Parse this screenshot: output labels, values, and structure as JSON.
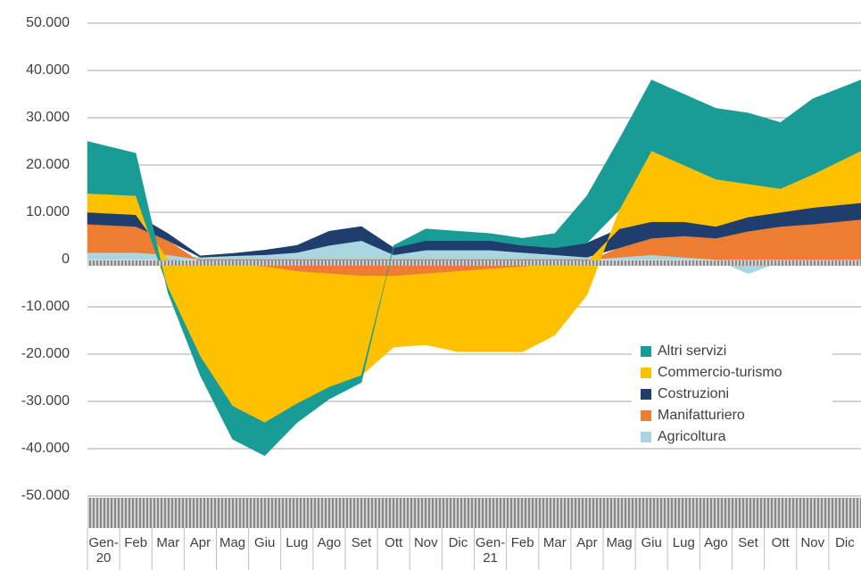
{
  "chart_data": {
    "type": "stacked-area",
    "categories": [
      "Gen-20",
      "Feb",
      "Mar",
      "Apr",
      "Mag",
      "Giu",
      "Lug",
      "Ago",
      "Set",
      "Ott",
      "Nov",
      "Dic",
      "Gen-21",
      "Feb",
      "Mar",
      "Apr",
      "Mag",
      "Giu",
      "Lug",
      "Ago",
      "Set",
      "Ott",
      "Nov",
      "Dic"
    ],
    "series": [
      {
        "name": "Agricoltura",
        "color": "#a9d6e0",
        "values": [
          1500,
          1500,
          1000,
          500,
          800,
          1000,
          1500,
          3000,
          4000,
          1000,
          2000,
          2000,
          2000,
          1500,
          1000,
          500,
          500,
          1000,
          500,
          0,
          -3000,
          -500,
          -300,
          -300
        ]
      },
      {
        "name": "Manifatturiero",
        "color": "#ed7d31",
        "values": [
          6000,
          5500,
          3000,
          -500,
          -1000,
          -1500,
          -2500,
          -3000,
          -3500,
          -3500,
          -3000,
          -2500,
          -2000,
          -1500,
          -1000,
          -500,
          2000,
          3500,
          4500,
          4500,
          6000,
          7000,
          7500,
          8500
        ]
      },
      {
        "name": "Costruzioni",
        "color": "#1f3e6e",
        "values": [
          2500,
          2500,
          1500,
          300,
          500,
          1000,
          1500,
          3000,
          3000,
          1500,
          2000,
          2000,
          2000,
          1500,
          1500,
          3000,
          4000,
          3500,
          3000,
          2500,
          3000,
          3000,
          3500,
          3500
        ]
      },
      {
        "name": "Commercio-turismo",
        "color": "#ffc000",
        "values": [
          4000,
          4000,
          -6000,
          -20000,
          -30000,
          -33000,
          -28000,
          -24000,
          -21000,
          -15000,
          -15000,
          -17000,
          -17500,
          -18000,
          -15000,
          -7000,
          4000,
          15000,
          12000,
          10000,
          7000,
          5000,
          7000,
          11000
        ]
      },
      {
        "name": "Altri servizi",
        "color": "#1a9c96",
        "values": [
          11000,
          9000,
          -1000,
          -4000,
          -7000,
          -7000,
          -4000,
          -2500,
          -1500,
          500,
          2500,
          2000,
          1500,
          1500,
          3000,
          10000,
          15000,
          15000,
          15000,
          15000,
          15000,
          14000,
          16000,
          15000
        ]
      }
    ],
    "ylim": [
      -50000,
      50000
    ],
    "yticks": [
      {
        "value": 50000,
        "label": "50.000"
      },
      {
        "value": 40000,
        "label": "40.000"
      },
      {
        "value": 30000,
        "label": "30.000"
      },
      {
        "value": 20000,
        "label": "20.000"
      },
      {
        "value": 10000,
        "label": "10.000"
      },
      0,
      {
        "value": -10000,
        "label": "-10.000"
      },
      {
        "value": -20000,
        "label": "-20.000"
      },
      {
        "value": -30000,
        "label": "-30.000"
      },
      {
        "value": -40000,
        "label": "-40.000"
      },
      {
        "value": -50000,
        "label": "-50.000"
      }
    ],
    "grid": true
  }
}
